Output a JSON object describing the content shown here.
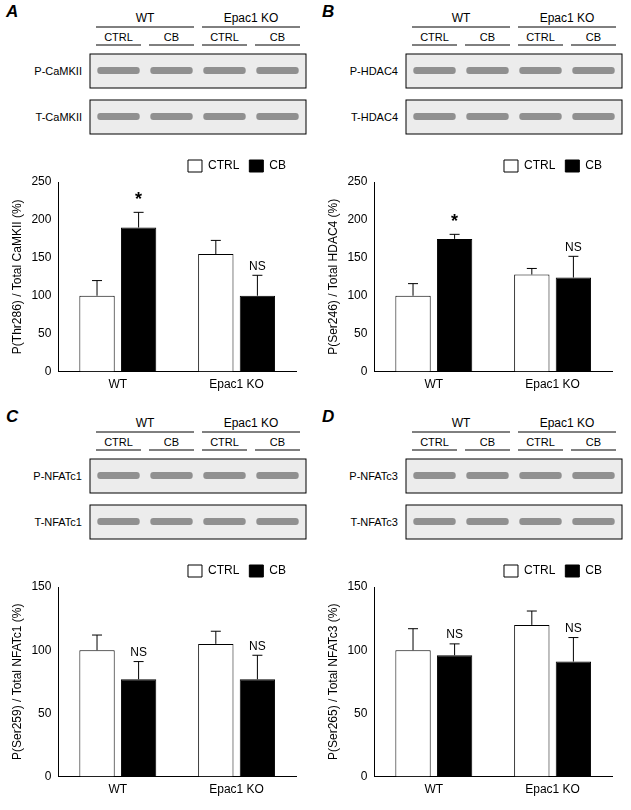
{
  "chart_data": [
    {
      "type": "bar",
      "panel": "A",
      "blot": {
        "groups": [
          "WT",
          "Epac1 KO"
        ],
        "lanes": [
          "CTRL",
          "CB",
          "CTRL",
          "CB"
        ],
        "rows": [
          "P-CaMKII",
          "T-CaMKII"
        ]
      },
      "y_label": "P(Thr286) / Total CaMKII (%)",
      "categories": [
        "WT",
        "Epac1 KO"
      ],
      "series": [
        {
          "name": "CTRL",
          "color": "#ffffff",
          "values": [
            100,
            155
          ],
          "errors": [
            20,
            18
          ]
        },
        {
          "name": "CB",
          "color": "#000000",
          "values": [
            190,
            100
          ],
          "errors": [
            20,
            27
          ]
        }
      ],
      "annotations": [
        "*",
        "NS"
      ],
      "ylim": [
        0,
        250
      ],
      "yticks": [
        0,
        50,
        100,
        150,
        200,
        250
      ],
      "grid": false,
      "legend": "upper right"
    },
    {
      "type": "bar",
      "panel": "B",
      "blot": {
        "groups": [
          "WT",
          "Epac1 KO"
        ],
        "lanes": [
          "CTRL",
          "CB",
          "CTRL",
          "CB"
        ],
        "rows": [
          "P-HDAC4",
          "T-HDAC4"
        ]
      },
      "y_label": "P(Ser246) / Total HDAC4 (%)",
      "categories": [
        "WT",
        "Epac1 KO"
      ],
      "series": [
        {
          "name": "CTRL",
          "color": "#ffffff",
          "values": [
            100,
            128
          ],
          "errors": [
            16,
            8
          ]
        },
        {
          "name": "CB",
          "color": "#000000",
          "values": [
            175,
            124
          ],
          "errors": [
            6,
            28
          ]
        }
      ],
      "annotations": [
        "*",
        "NS"
      ],
      "ylim": [
        0,
        250
      ],
      "yticks": [
        0,
        50,
        100,
        150,
        200,
        250
      ],
      "grid": false,
      "legend": "upper right"
    },
    {
      "type": "bar",
      "panel": "C",
      "blot": {
        "groups": [
          "WT",
          "Epac1 KO"
        ],
        "lanes": [
          "CTRL",
          "CB",
          "CTRL",
          "CB"
        ],
        "rows": [
          "P-NFATc1",
          "T-NFATc1"
        ]
      },
      "y_label": "P(Ser259) / Total NFATc1 (%)",
      "categories": [
        "WT",
        "Epac1 KO"
      ],
      "series": [
        {
          "name": "CTRL",
          "color": "#ffffff",
          "values": [
            100,
            105
          ],
          "errors": [
            12,
            10
          ]
        },
        {
          "name": "CB",
          "color": "#000000",
          "values": [
            77,
            77
          ],
          "errors": [
            14,
            19
          ]
        }
      ],
      "annotations": [
        "NS",
        "NS"
      ],
      "ylim": [
        0,
        150
      ],
      "yticks": [
        0,
        50,
        100,
        150
      ],
      "grid": false,
      "legend": "upper right"
    },
    {
      "type": "bar",
      "panel": "D",
      "blot": {
        "groups": [
          "WT",
          "Epac1 KO"
        ],
        "lanes": [
          "CTRL",
          "CB",
          "CTRL",
          "CB"
        ],
        "rows": [
          "P-NFATc3",
          "T-NFATc3"
        ]
      },
      "y_label": "P(Ser265) / Total NFATc3 (%)",
      "categories": [
        "WT",
        "Epac1 KO"
      ],
      "series": [
        {
          "name": "CTRL",
          "color": "#ffffff",
          "values": [
            100,
            120
          ],
          "errors": [
            17,
            11
          ]
        },
        {
          "name": "CB",
          "color": "#000000",
          "values": [
            96,
            91
          ],
          "errors": [
            9,
            19
          ]
        }
      ],
      "annotations": [
        "NS",
        "NS"
      ],
      "ylim": [
        0,
        150
      ],
      "yticks": [
        0,
        50,
        100,
        150
      ],
      "grid": false,
      "legend": "upper right"
    }
  ]
}
